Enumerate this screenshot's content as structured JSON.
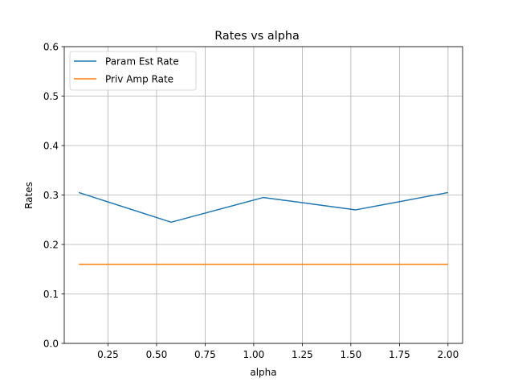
{
  "chart_data": {
    "type": "line",
    "title": "Rates vs alpha",
    "xlabel": "alpha",
    "ylabel": "Rates",
    "xlim": [
      0.025,
      2.075
    ],
    "ylim": [
      0.0,
      0.6
    ],
    "xticks": [
      0.25,
      0.5,
      0.75,
      1.0,
      1.25,
      1.5,
      1.75,
      2.0
    ],
    "xtick_labels": [
      "0.25",
      "0.50",
      "0.75",
      "1.00",
      "1.25",
      "1.50",
      "1.75",
      "2.00"
    ],
    "yticks": [
      0.0,
      0.1,
      0.2,
      0.3,
      0.4,
      0.5,
      0.6
    ],
    "ytick_labels": [
      "0.0",
      "0.1",
      "0.2",
      "0.3",
      "0.4",
      "0.5",
      "0.6"
    ],
    "grid": true,
    "legend_position": "top-left",
    "series": [
      {
        "name": "Param Est Rate",
        "color": "#1f77b4",
        "x": [
          0.1,
          0.575,
          1.05,
          1.525,
          2.0
        ],
        "values": [
          0.305,
          0.245,
          0.295,
          0.27,
          0.305
        ]
      },
      {
        "name": "Priv Amp Rate",
        "color": "#ff7f0e",
        "x": [
          0.1,
          0.575,
          1.05,
          1.525,
          2.0
        ],
        "values": [
          0.16,
          0.16,
          0.16,
          0.16,
          0.16
        ]
      }
    ]
  }
}
